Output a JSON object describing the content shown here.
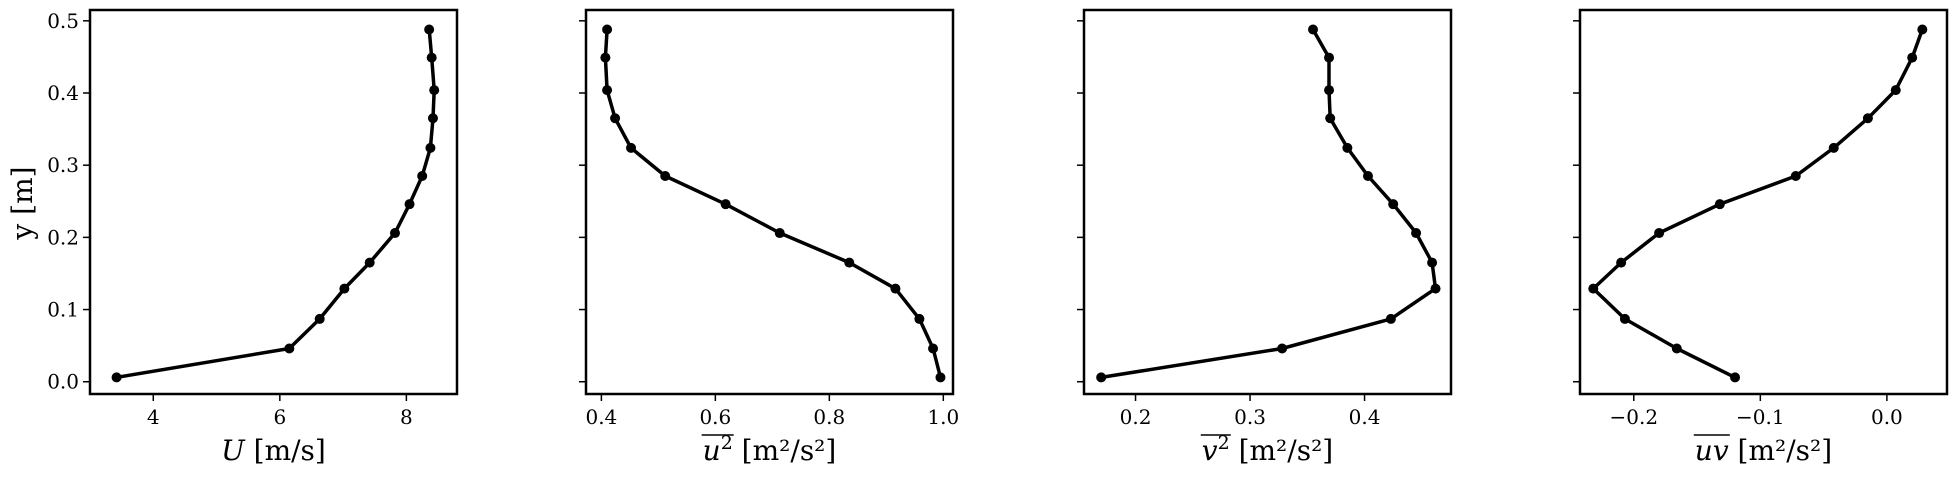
{
  "figure": {
    "ylabel": "y [m]",
    "line_color": "#000000"
  },
  "chart_data": [
    {
      "type": "line",
      "xlabel": {
        "main": "U",
        "rest": " [m/s]",
        "overline": false,
        "italic_main": true,
        "sup_main": ""
      },
      "ylabel": "y [m]",
      "xlim": [
        3.0,
        8.8
      ],
      "ylim": [
        -0.017,
        0.515
      ],
      "xticks": [
        4,
        6,
        8
      ],
      "xtick_labels": [
        "4",
        "6",
        "8"
      ],
      "yticks": [
        0.0,
        0.1,
        0.2,
        0.3,
        0.4,
        0.5
      ],
      "ytick_labels": [
        "0.0",
        "0.1",
        "0.2",
        "0.3",
        "0.4",
        "0.5"
      ],
      "grid": false,
      "series": [
        {
          "x": [
            3.42,
            6.15,
            6.63,
            7.02,
            7.42,
            7.82,
            8.05,
            8.25,
            8.38,
            8.42,
            8.44,
            8.4,
            8.36
          ],
          "y": [
            0.006,
            0.046,
            0.087,
            0.129,
            0.165,
            0.206,
            0.246,
            0.285,
            0.324,
            0.365,
            0.404,
            0.449,
            0.488
          ]
        }
      ]
    },
    {
      "type": "line",
      "xlabel": {
        "main": "u",
        "rest": " [m²/s²]",
        "overline": true,
        "italic_main": true,
        "sup_main": "2"
      },
      "xlim": [
        0.373,
        1.017
      ],
      "ylim": [
        -0.017,
        0.515
      ],
      "xticks": [
        0.4,
        0.6,
        0.8,
        1.0
      ],
      "xtick_labels": [
        "0.4",
        "0.6",
        "0.8",
        "1.0"
      ],
      "yticks": [
        0.0,
        0.1,
        0.2,
        0.3,
        0.4,
        0.5
      ],
      "grid": false,
      "series": [
        {
          "x": [
            0.995,
            0.982,
            0.958,
            0.916,
            0.835,
            0.713,
            0.618,
            0.512,
            0.452,
            0.424,
            0.41,
            0.407,
            0.41
          ],
          "y": [
            0.006,
            0.046,
            0.087,
            0.129,
            0.165,
            0.206,
            0.246,
            0.285,
            0.324,
            0.365,
            0.404,
            0.449,
            0.488
          ]
        }
      ]
    },
    {
      "type": "line",
      "xlabel": {
        "main": "v",
        "rest": " [m²/s²]",
        "overline": true,
        "italic_main": true,
        "sup_main": "2"
      },
      "xlim": [
        0.155,
        0.4755
      ],
      "ylim": [
        -0.017,
        0.515
      ],
      "xticks": [
        0.2,
        0.3,
        0.4
      ],
      "xtick_labels": [
        "0.2",
        "0.3",
        "0.4"
      ],
      "yticks": [
        0.0,
        0.1,
        0.2,
        0.3,
        0.4,
        0.5
      ],
      "grid": false,
      "series": [
        {
          "x": [
            0.17,
            0.328,
            0.423,
            0.462,
            0.459,
            0.445,
            0.425,
            0.403,
            0.385,
            0.37,
            0.369,
            0.369,
            0.355
          ],
          "y": [
            0.006,
            0.046,
            0.087,
            0.129,
            0.165,
            0.206,
            0.246,
            0.285,
            0.324,
            0.365,
            0.404,
            0.449,
            0.488
          ]
        }
      ]
    },
    {
      "type": "line",
      "xlabel": {
        "main": "uv",
        "rest": " [m²/s²]",
        "overline": true,
        "italic_main": true,
        "sup_main": ""
      },
      "xlim": [
        -0.2425,
        0.0475
      ],
      "ylim": [
        -0.017,
        0.515
      ],
      "xticks": [
        -0.2,
        -0.1,
        0.0
      ],
      "xtick_labels": [
        "−0.2",
        "−0.1",
        "0.0"
      ],
      "yticks": [
        0.0,
        0.1,
        0.2,
        0.3,
        0.4,
        0.5
      ],
      "grid": false,
      "series": [
        {
          "x": [
            -0.12,
            -0.166,
            -0.207,
            -0.232,
            -0.21,
            -0.18,
            -0.132,
            -0.072,
            -0.042,
            -0.015,
            0.007,
            0.02,
            0.028
          ],
          "y": [
            0.006,
            0.046,
            0.087,
            0.129,
            0.165,
            0.206,
            0.246,
            0.285,
            0.324,
            0.365,
            0.404,
            0.449,
            0.488
          ]
        }
      ]
    }
  ]
}
